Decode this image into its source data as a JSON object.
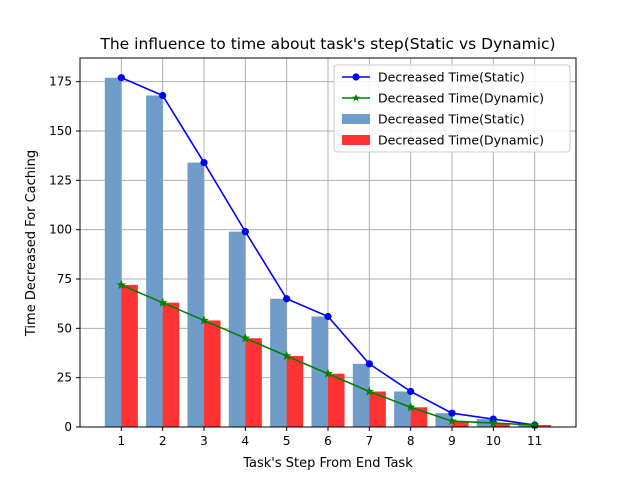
{
  "chart_data": {
    "type": "bar",
    "title": "The influence to time about task's step(Static vs Dynamic)",
    "xlabel": "Task's Step From End Task",
    "ylabel": "Time Decreased For Caching",
    "categories": [
      "1",
      "2",
      "3",
      "4",
      "5",
      "6",
      "7",
      "8",
      "9",
      "10",
      "11"
    ],
    "x": [
      1,
      2,
      3,
      4,
      5,
      6,
      7,
      8,
      9,
      10,
      11
    ],
    "ylim": [
      0,
      187
    ],
    "yticks": [
      0,
      25,
      50,
      75,
      100,
      125,
      150,
      175
    ],
    "grid": true,
    "legend_position": "top-right",
    "series": [
      {
        "name": "Decreased Time(Static)",
        "kind": "line",
        "marker": "circle",
        "color": "#0000ff",
        "values": [
          177,
          168,
          134,
          99,
          65,
          56,
          32,
          18,
          7,
          4,
          1
        ]
      },
      {
        "name": "Decreased Time(Dynamic)",
        "kind": "line",
        "marker": "star",
        "color": "#008000",
        "values": [
          72,
          63,
          54,
          45,
          36,
          27,
          18,
          10,
          3,
          2,
          1
        ]
      },
      {
        "name": "Decreased Time(Static)",
        "kind": "bar",
        "color": "#6f9cc8",
        "values": [
          177,
          168,
          134,
          99,
          65,
          56,
          32,
          18,
          7,
          4,
          1
        ]
      },
      {
        "name": "Decreased Time(Dynamic)",
        "kind": "bar",
        "color": "#ff3333",
        "values": [
          72,
          63,
          54,
          45,
          36,
          27,
          18,
          10,
          3,
          2,
          1
        ]
      }
    ]
  }
}
